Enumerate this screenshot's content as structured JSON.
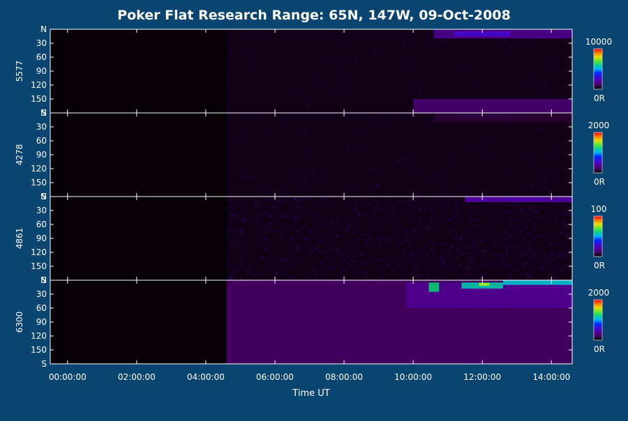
{
  "title": "Poker Flat Research Range: 65N, 147W, 09-Oct-2008",
  "xlabel": "Time UT",
  "colors": {
    "background": "#0a4470",
    "plot_background": "#060006",
    "axis": "#ffffff",
    "text": "#ffffff"
  },
  "chart_data": {
    "type": "heatmap",
    "title": "Poker Flat Research Range: 65N, 147W, 09-Oct-2008",
    "xlabel": "Time UT",
    "x_ticks": [
      "00:00:00",
      "02:00:00",
      "04:00:00",
      "06:00:00",
      "08:00:00",
      "10:00:00",
      "12:00:00",
      "14:00:00"
    ],
    "x_tick_hours": [
      0,
      2,
      4,
      6,
      8,
      10,
      12,
      14
    ],
    "x_range_hours": [
      -0.5,
      14.6
    ],
    "y_ticks": [
      "N",
      "30",
      "60",
      "90",
      "120",
      "150",
      "S"
    ],
    "y_tick_values": [
      0,
      30,
      60,
      90,
      120,
      150,
      180
    ],
    "y_range": [
      0,
      180
    ],
    "data_start_hour": 4.6,
    "colorbar": "rainbow (purple to red)",
    "panels": [
      {
        "name": "5577",
        "cbar_max": "10000",
        "cbar_min": "0R",
        "bright_regions": [
          {
            "t_start": 10.6,
            "t_end": 14.6,
            "y_start": 0,
            "y_end": 20,
            "level": 0.18
          },
          {
            "t_start": 11.2,
            "t_end": 12.8,
            "y_start": 5,
            "y_end": 15,
            "level": 0.28
          },
          {
            "t_start": 10.0,
            "t_end": 14.6,
            "y_start": 150,
            "y_end": 180,
            "level": 0.14
          }
        ],
        "noise_level": 0.02
      },
      {
        "name": "4278",
        "cbar_max": "2000",
        "cbar_min": "0R",
        "bright_regions": [
          {
            "t_start": 11.2,
            "t_end": 12.8,
            "y_start": 5,
            "y_end": 12,
            "level": 0.18
          },
          {
            "t_start": 10.6,
            "t_end": 14.6,
            "y_start": 0,
            "y_end": 20,
            "level": 0.06
          }
        ],
        "noise_level": 0.03
      },
      {
        "name": "4861",
        "cbar_max": "100",
        "cbar_min": "0R",
        "bright_regions": [
          {
            "t_start": 11.5,
            "t_end": 14.6,
            "y_start": 0,
            "y_end": 12,
            "level": 0.22
          }
        ],
        "noise_level": 0.25
      },
      {
        "name": "6300",
        "cbar_max": "2000",
        "cbar_min": "0R",
        "bright_regions": [
          {
            "t_start": 4.6,
            "t_end": 14.6,
            "y_start": 0,
            "y_end": 180,
            "level": 0.12
          },
          {
            "t_start": 9.8,
            "t_end": 14.6,
            "y_start": 5,
            "y_end": 60,
            "level": 0.18
          },
          {
            "t_start": 10.45,
            "t_end": 10.75,
            "y_start": 5,
            "y_end": 25,
            "level": 0.62
          },
          {
            "t_start": 11.4,
            "t_end": 12.6,
            "y_start": 5,
            "y_end": 18,
            "level": 0.58
          },
          {
            "t_start": 12.6,
            "t_end": 14.6,
            "y_start": 0,
            "y_end": 10,
            "level": 0.55
          },
          {
            "t_start": 11.9,
            "t_end": 12.2,
            "y_start": 6,
            "y_end": 12,
            "level": 0.75
          }
        ],
        "noise_level": 0.08
      }
    ]
  }
}
